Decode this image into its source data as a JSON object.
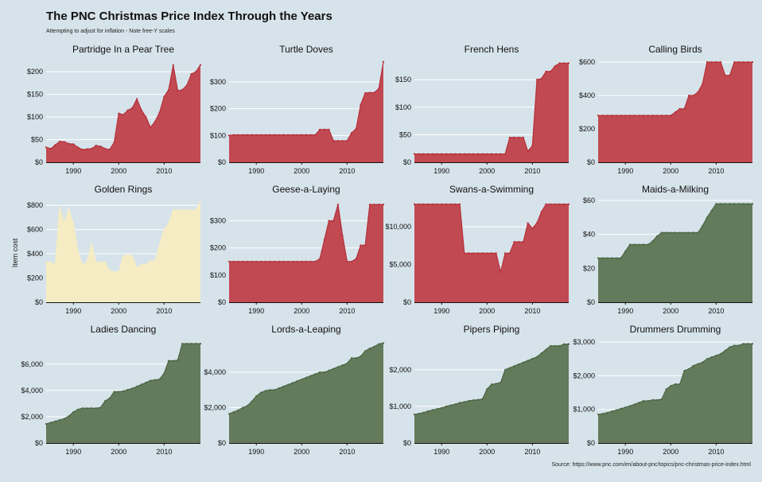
{
  "title": "The PNC Christmas Price Index Through the Years",
  "subtitle": "Attempting to adjust for inflation - Note free-Y scales",
  "y_axis_label": "Item cost",
  "source": "Source: https://www.pnc.com/en/about-pnc/topics/pnc-christmas-price-index.html",
  "colors": {
    "background": "#d6e3ea",
    "birds": "#b5303a",
    "birds_fill": "#c14a52",
    "gold": "#f5ecc4",
    "people": "#4a6744",
    "people_fill": "#637a5b",
    "grid": "#ffffff"
  },
  "chart_data": [
    {
      "type": "area",
      "title": "Partridge In a Pear Tree",
      "group": "birds",
      "xlim": [
        1984,
        2018
      ],
      "x_ticks": [
        1990,
        2000,
        2010
      ],
      "ylim": [
        0,
        225
      ],
      "y_ticks": [
        0,
        50,
        100,
        150,
        200
      ],
      "y_tick_labels": [
        "$0",
        "$50",
        "$100",
        "$150",
        "$200"
      ],
      "x": [
        1984,
        1985,
        1986,
        1987,
        1988,
        1989,
        1990,
        1991,
        1992,
        1993,
        1994,
        1995,
        1996,
        1997,
        1998,
        1999,
        2000,
        2001,
        2002,
        2003,
        2004,
        2005,
        2006,
        2007,
        2008,
        2009,
        2010,
        2011,
        2012,
        2013,
        2014,
        2015,
        2016,
        2017,
        2018
      ],
      "values": [
        33,
        30,
        38,
        46,
        45,
        41,
        40,
        33,
        28,
        29,
        30,
        37,
        35,
        30,
        28,
        44,
        108,
        105,
        115,
        120,
        140,
        115,
        100,
        77,
        90,
        110,
        145,
        160,
        215,
        158,
        160,
        170,
        195,
        200,
        215
      ]
    },
    {
      "type": "area",
      "title": "Turtle Doves",
      "group": "birds",
      "xlim": [
        1984,
        2018
      ],
      "x_ticks": [
        1990,
        2000,
        2010
      ],
      "ylim": [
        0,
        380
      ],
      "y_ticks": [
        0,
        100,
        200,
        300
      ],
      "y_tick_labels": [
        "$0",
        "$100",
        "$200",
        "$300"
      ],
      "x": [
        1984,
        1985,
        1986,
        1987,
        1988,
        1989,
        1990,
        1991,
        1992,
        1993,
        1994,
        1995,
        1996,
        1997,
        1998,
        1999,
        2000,
        2001,
        2002,
        2003,
        2004,
        2005,
        2006,
        2007,
        2008,
        2009,
        2010,
        2011,
        2012,
        2013,
        2014,
        2015,
        2016,
        2017,
        2018
      ],
      "values": [
        100,
        102,
        102,
        102,
        102,
        102,
        102,
        102,
        102,
        102,
        102,
        102,
        102,
        102,
        102,
        102,
        102,
        102,
        102,
        102,
        122,
        122,
        122,
        80,
        80,
        80,
        80,
        110,
        125,
        215,
        258,
        260,
        260,
        275,
        375
      ]
    },
    {
      "type": "area",
      "title": "French Hens",
      "group": "birds",
      "xlim": [
        1984,
        2018
      ],
      "x_ticks": [
        1990,
        2000,
        2010
      ],
      "ylim": [
        0,
        185
      ],
      "y_ticks": [
        0,
        50,
        100,
        150
      ],
      "y_tick_labels": [
        "$0",
        "$50",
        "$100",
        "$150"
      ],
      "x": [
        1984,
        1985,
        1986,
        1987,
        1988,
        1989,
        1990,
        1991,
        1992,
        1993,
        1994,
        1995,
        1996,
        1997,
        1998,
        1999,
        2000,
        2001,
        2002,
        2003,
        2004,
        2005,
        2006,
        2007,
        2008,
        2009,
        2010,
        2011,
        2012,
        2013,
        2014,
        2015,
        2016,
        2017,
        2018
      ],
      "values": [
        15,
        15,
        15,
        15,
        15,
        15,
        15,
        15,
        15,
        15,
        15,
        15,
        15,
        15,
        15,
        15,
        15,
        15,
        15,
        15,
        15,
        45,
        45,
        45,
        45,
        20,
        30,
        150,
        152,
        165,
        165,
        175,
        180,
        180,
        180
      ]
    },
    {
      "type": "area",
      "title": "Calling Birds",
      "group": "birds",
      "xlim": [
        1984,
        2018
      ],
      "x_ticks": [
        1990,
        2000,
        2010
      ],
      "ylim": [
        0,
        610
      ],
      "y_ticks": [
        0,
        200,
        400,
        600
      ],
      "y_tick_labels": [
        "$0",
        "$200",
        "$400",
        "$600"
      ],
      "x": [
        1984,
        1985,
        1986,
        1987,
        1988,
        1989,
        1990,
        1991,
        1992,
        1993,
        1994,
        1995,
        1996,
        1997,
        1998,
        1999,
        2000,
        2001,
        2002,
        2003,
        2004,
        2005,
        2006,
        2007,
        2008,
        2009,
        2010,
        2011,
        2012,
        2013,
        2014,
        2015,
        2016,
        2017,
        2018
      ],
      "values": [
        280,
        280,
        280,
        280,
        280,
        280,
        280,
        280,
        280,
        280,
        280,
        280,
        280,
        280,
        280,
        280,
        280,
        300,
        320,
        320,
        400,
        400,
        420,
        470,
        600,
        600,
        600,
        600,
        520,
        520,
        600,
        600,
        600,
        600,
        600
      ]
    },
    {
      "type": "area",
      "title": "Golden Rings",
      "group": "gold",
      "xlim": [
        1984,
        2018
      ],
      "x_ticks": [
        1990,
        2000,
        2010
      ],
      "ylim": [
        0,
        840
      ],
      "y_ticks": [
        0,
        200,
        400,
        600,
        800
      ],
      "y_tick_labels": [
        "$0",
        "$200",
        "$400",
        "$600",
        "$800"
      ],
      "x": [
        1984,
        1985,
        1986,
        1987,
        1988,
        1989,
        1990,
        1991,
        1992,
        1993,
        1994,
        1995,
        1996,
        1997,
        1998,
        1999,
        2000,
        2001,
        2002,
        2003,
        2004,
        2005,
        2006,
        2007,
        2008,
        2009,
        2010,
        2011,
        2012,
        2013,
        2014,
        2015,
        2016,
        2017,
        2018
      ],
      "values": [
        330,
        330,
        310,
        780,
        650,
        770,
        650,
        420,
        310,
        330,
        480,
        330,
        330,
        330,
        260,
        250,
        250,
        380,
        390,
        380,
        280,
        310,
        310,
        340,
        340,
        480,
        600,
        650,
        760,
        760,
        760,
        760,
        760,
        760,
        830
      ]
    },
    {
      "type": "area",
      "title": "Geese-a-Laying",
      "group": "birds",
      "xlim": [
        1984,
        2018
      ],
      "x_ticks": [
        1990,
        2000,
        2010
      ],
      "ylim": [
        0,
        375
      ],
      "y_ticks": [
        0,
        100,
        200,
        300
      ],
      "y_tick_labels": [
        "$0",
        "$100",
        "$200",
        "$300"
      ],
      "x": [
        1984,
        1985,
        1986,
        1987,
        1988,
        1989,
        1990,
        1991,
        1992,
        1993,
        1994,
        1995,
        1996,
        1997,
        1998,
        1999,
        2000,
        2001,
        2002,
        2003,
        2004,
        2005,
        2006,
        2007,
        2008,
        2009,
        2010,
        2011,
        2012,
        2013,
        2014,
        2015,
        2016,
        2017,
        2018
      ],
      "values": [
        150,
        150,
        150,
        150,
        150,
        150,
        150,
        150,
        150,
        150,
        150,
        150,
        150,
        150,
        150,
        150,
        150,
        150,
        150,
        150,
        160,
        230,
        300,
        300,
        360,
        245,
        150,
        150,
        160,
        210,
        210,
        360,
        360,
        360,
        360
      ]
    },
    {
      "type": "area",
      "title": "Swans-a-Swimming",
      "group": "birds",
      "xlim": [
        1984,
        2018
      ],
      "x_ticks": [
        1990,
        2000,
        2010
      ],
      "ylim": [
        0,
        13500
      ],
      "y_ticks": [
        0,
        5000,
        10000
      ],
      "y_tick_labels": [
        "$0",
        "$5,000",
        "$10,000"
      ],
      "x": [
        1984,
        1985,
        1986,
        1987,
        1988,
        1989,
        1990,
        1991,
        1992,
        1993,
        1994,
        1995,
        1996,
        1997,
        1998,
        1999,
        2000,
        2001,
        2002,
        2003,
        2004,
        2005,
        2006,
        2007,
        2008,
        2009,
        2010,
        2011,
        2012,
        2013,
        2014,
        2015,
        2016,
        2017,
        2018
      ],
      "values": [
        13000,
        13000,
        13000,
        13000,
        13000,
        13000,
        13000,
        13000,
        13000,
        13000,
        13000,
        6500,
        6500,
        6500,
        6500,
        6500,
        6500,
        6500,
        6500,
        4000,
        6500,
        6500,
        8000,
        8000,
        8000,
        10500,
        9800,
        10500,
        12000,
        13000,
        13000,
        13000,
        13000,
        13000,
        13000
      ]
    },
    {
      "type": "area",
      "title": "Maids-a-Milking",
      "group": "people",
      "xlim": [
        1984,
        2018
      ],
      "x_ticks": [
        1990,
        2000,
        2010
      ],
      "ylim": [
        0,
        60
      ],
      "y_ticks": [
        0,
        20,
        40,
        60
      ],
      "y_tick_labels": [
        "$0",
        "$20",
        "$40",
        "$60"
      ],
      "x": [
        1984,
        1985,
        1986,
        1987,
        1988,
        1989,
        1990,
        1991,
        1992,
        1993,
        1994,
        1995,
        1996,
        1997,
        1998,
        1999,
        2000,
        2001,
        2002,
        2003,
        2004,
        2005,
        2006,
        2007,
        2008,
        2009,
        2010,
        2011,
        2012,
        2013,
        2014,
        2015,
        2016,
        2017,
        2018
      ],
      "values": [
        26,
        26,
        26,
        26,
        26,
        26,
        30,
        34,
        34,
        34,
        34,
        34,
        36,
        39,
        41,
        41,
        41,
        41,
        41,
        41,
        41,
        41,
        41,
        45,
        50,
        54,
        58,
        58,
        58,
        58,
        58,
        58,
        58,
        58,
        58
      ]
    },
    {
      "type": "area",
      "title": "Ladies Dancing",
      "group": "people",
      "xlim": [
        1984,
        2018
      ],
      "x_ticks": [
        1990,
        2000,
        2010
      ],
      "ylim": [
        0,
        7800
      ],
      "y_ticks": [
        0,
        2000,
        4000,
        6000
      ],
      "y_tick_labels": [
        "$0",
        "$2,000",
        "$4,000",
        "$6,000"
      ],
      "x": [
        1984,
        1985,
        1986,
        1987,
        1988,
        1989,
        1990,
        1991,
        1992,
        1993,
        1994,
        1995,
        1996,
        1997,
        1998,
        1999,
        2000,
        2001,
        2002,
        2003,
        2004,
        2005,
        2006,
        2007,
        2008,
        2009,
        2010,
        2011,
        2012,
        2013,
        2014,
        2015,
        2016,
        2017,
        2018
      ],
      "values": [
        1450,
        1550,
        1650,
        1750,
        1850,
        2050,
        2350,
        2550,
        2650,
        2650,
        2650,
        2650,
        2700,
        3200,
        3400,
        3900,
        3900,
        3950,
        4050,
        4150,
        4300,
        4450,
        4600,
        4750,
        4800,
        4850,
        5300,
        6250,
        6250,
        6300,
        7550,
        7550,
        7550,
        7550,
        7550
      ]
    },
    {
      "type": "area",
      "title": "Lords-a-Leaping",
      "group": "people",
      "xlim": [
        1984,
        2018
      ],
      "x_ticks": [
        1990,
        2000,
        2010
      ],
      "ylim": [
        0,
        5800
      ],
      "y_ticks": [
        0,
        2000,
        4000
      ],
      "y_tick_labels": [
        "$0",
        "$2,000",
        "$4,000"
      ],
      "x": [
        1984,
        1985,
        1986,
        1987,
        1988,
        1989,
        1990,
        1991,
        1992,
        1993,
        1994,
        1995,
        1996,
        1997,
        1998,
        1999,
        2000,
        2001,
        2002,
        2003,
        2004,
        2005,
        2006,
        2007,
        2008,
        2009,
        2010,
        2011,
        2012,
        2013,
        2014,
        2015,
        2016,
        2017,
        2018
      ],
      "values": [
        1650,
        1750,
        1850,
        2000,
        2100,
        2350,
        2650,
        2850,
        2950,
        3000,
        3000,
        3100,
        3200,
        3300,
        3400,
        3500,
        3600,
        3700,
        3800,
        3900,
        4000,
        4000,
        4100,
        4200,
        4300,
        4400,
        4500,
        4800,
        4800,
        4900,
        5200,
        5350,
        5450,
        5600,
        5650
      ]
    },
    {
      "type": "area",
      "title": "Pipers Piping",
      "group": "people",
      "xlim": [
        1984,
        2018
      ],
      "x_ticks": [
        1990,
        2000,
        2010
      ],
      "ylim": [
        0,
        2800
      ],
      "y_ticks": [
        0,
        1000,
        2000
      ],
      "y_tick_labels": [
        "$0",
        "$1,000",
        "$2,000"
      ],
      "x": [
        1984,
        1985,
        1986,
        1987,
        1988,
        1989,
        1990,
        1991,
        1992,
        1993,
        1994,
        1995,
        1996,
        1997,
        1998,
        1999,
        2000,
        2001,
        2002,
        2003,
        2004,
        2005,
        2006,
        2007,
        2008,
        2009,
        2010,
        2011,
        2012,
        2013,
        2014,
        2015,
        2016,
        2017,
        2018
      ],
      "values": [
        780,
        800,
        830,
        870,
        900,
        930,
        960,
        1000,
        1030,
        1060,
        1100,
        1120,
        1150,
        1170,
        1180,
        1200,
        1470,
        1600,
        1620,
        1650,
        2000,
        2050,
        2100,
        2150,
        2200,
        2250,
        2300,
        2350,
        2450,
        2550,
        2650,
        2650,
        2650,
        2700,
        2700
      ]
    },
    {
      "type": "area",
      "title": "Drummers Drumming",
      "group": "people",
      "xlim": [
        1984,
        2018
      ],
      "x_ticks": [
        1990,
        2000,
        2010
      ],
      "ylim": [
        0,
        3050
      ],
      "y_ticks": [
        0,
        1000,
        2000,
        3000
      ],
      "y_tick_labels": [
        "$0",
        "$1,000",
        "$2,000",
        "$3,000"
      ],
      "x": [
        1984,
        1985,
        1986,
        1987,
        1988,
        1989,
        1990,
        1991,
        1992,
        1993,
        1994,
        1995,
        1996,
        1997,
        1998,
        1999,
        2000,
        2001,
        2002,
        2003,
        2004,
        2005,
        2006,
        2007,
        2008,
        2009,
        2010,
        2011,
        2012,
        2013,
        2014,
        2015,
        2016,
        2017,
        2018
      ],
      "values": [
        850,
        870,
        900,
        940,
        980,
        1020,
        1060,
        1100,
        1150,
        1200,
        1250,
        1250,
        1280,
        1280,
        1300,
        1600,
        1700,
        1750,
        1750,
        2150,
        2200,
        2300,
        2350,
        2400,
        2500,
        2550,
        2600,
        2650,
        2750,
        2850,
        2900,
        2900,
        2950,
        2950,
        2950
      ]
    }
  ]
}
